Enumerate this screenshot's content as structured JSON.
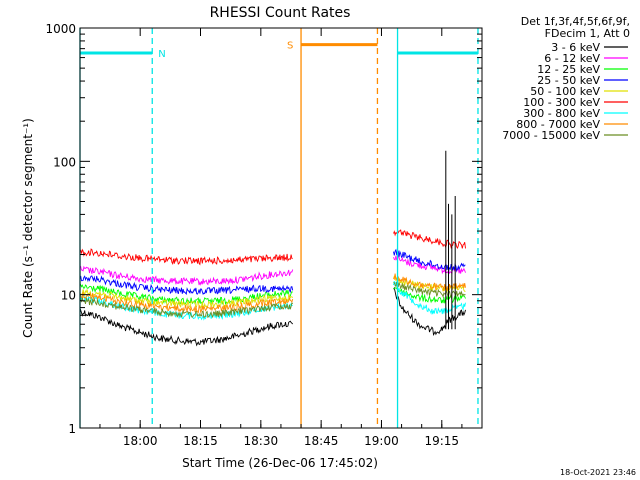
{
  "chart_data": {
    "type": "line",
    "title": "RHESSI Count Rates",
    "xlabel": "Start Time (26-Dec-06 17:45:02)",
    "ylabel": "Count Rate (s⁻¹ detector segment⁻¹)",
    "yscale": "log",
    "ylim": [
      1,
      1000
    ],
    "xlim": [
      "17:45:02",
      "19:25:00"
    ],
    "x_ticks": [
      "18:00",
      "18:15",
      "18:30",
      "18:45",
      "19:00",
      "19:15"
    ],
    "y_ticks": [
      "1",
      "10",
      "100",
      "1000"
    ],
    "legend_header": [
      "Det 1f,3f,4f,5f,6f,9f,",
      "FDecim 1, Att 0"
    ],
    "legend_position": "right",
    "grid": false,
    "series": [
      {
        "name": "3 - 6 keV",
        "color": "#000000",
        "points": [
          [
            "17:45",
            "7.5"
          ],
          [
            "17:50",
            "6.8"
          ],
          [
            "17:55",
            "5.8"
          ],
          [
            "18:00",
            "5.2"
          ],
          [
            "18:05",
            "4.7"
          ],
          [
            "18:10",
            "4.5"
          ],
          [
            "18:15",
            "4.4"
          ],
          [
            "18:20",
            "4.6"
          ],
          [
            "18:25",
            "5.0"
          ],
          [
            "18:30",
            "5.6"
          ],
          [
            "18:35",
            "6.0"
          ],
          [
            "18:38",
            "6.0"
          ],
          [
            "19:03",
            "11.0"
          ],
          [
            "19:05",
            "8.0"
          ],
          [
            "19:08",
            "6.5"
          ],
          [
            "19:10",
            "5.8"
          ],
          [
            "19:13",
            "5.3"
          ],
          [
            "19:15",
            "5.5"
          ],
          [
            "19:17",
            "6.5"
          ],
          [
            "19:19",
            "7.0"
          ],
          [
            "19:21",
            "7.5"
          ]
        ]
      },
      {
        "name": "6 - 12 keV",
        "color": "#ff00ff",
        "points": [
          [
            "17:45",
            "15.5"
          ],
          [
            "17:50",
            "14.8"
          ],
          [
            "17:55",
            "13.8"
          ],
          [
            "18:00",
            "13.2"
          ],
          [
            "18:05",
            "12.8"
          ],
          [
            "18:10",
            "12.6"
          ],
          [
            "18:15",
            "12.5"
          ],
          [
            "18:20",
            "12.6"
          ],
          [
            "18:25",
            "13.0"
          ],
          [
            "18:30",
            "13.8"
          ],
          [
            "18:35",
            "14.5"
          ],
          [
            "18:38",
            "14.8"
          ],
          [
            "19:03",
            "19.5"
          ],
          [
            "19:05",
            "18.0"
          ],
          [
            "19:08",
            "17.0"
          ],
          [
            "19:10",
            "16.5"
          ],
          [
            "19:13",
            "16.0"
          ],
          [
            "19:15",
            "15.5"
          ],
          [
            "19:17",
            "15.2"
          ],
          [
            "19:19",
            "15.0"
          ],
          [
            "19:21",
            "15.0"
          ]
        ]
      },
      {
        "name": "12 - 25 keV",
        "color": "#00ff00",
        "points": [
          [
            "17:45",
            "11.5"
          ],
          [
            "17:50",
            "11.0"
          ],
          [
            "17:55",
            "10.2"
          ],
          [
            "18:00",
            "9.6"
          ],
          [
            "18:05",
            "9.2"
          ],
          [
            "18:10",
            "9.0"
          ],
          [
            "18:15",
            "8.9"
          ],
          [
            "18:20",
            "9.0"
          ],
          [
            "18:25",
            "9.3"
          ],
          [
            "18:30",
            "9.8"
          ],
          [
            "18:35",
            "10.2"
          ],
          [
            "18:38",
            "10.2"
          ],
          [
            "19:03",
            "11.5"
          ],
          [
            "19:05",
            "10.5"
          ],
          [
            "19:08",
            "9.8"
          ],
          [
            "19:10",
            "9.4"
          ],
          [
            "19:13",
            "9.2"
          ],
          [
            "19:15",
            "9.0"
          ],
          [
            "19:17",
            "9.2"
          ],
          [
            "19:19",
            "9.4"
          ],
          [
            "19:21",
            "9.5"
          ]
        ]
      },
      {
        "name": "25 - 50 keV",
        "color": "#0000ff",
        "points": [
          [
            "17:45",
            "13.5"
          ],
          [
            "17:50",
            "13.0"
          ],
          [
            "17:55",
            "12.0"
          ],
          [
            "18:00",
            "11.3"
          ],
          [
            "18:05",
            "10.9"
          ],
          [
            "18:10",
            "10.7"
          ],
          [
            "18:15",
            "10.6"
          ],
          [
            "18:20",
            "10.7"
          ],
          [
            "18:25",
            "10.9"
          ],
          [
            "18:30",
            "11.2"
          ],
          [
            "18:35",
            "11.0"
          ],
          [
            "18:38",
            "11.0"
          ],
          [
            "19:03",
            "21.0"
          ],
          [
            "19:05",
            "20.0"
          ],
          [
            "19:08",
            "18.5"
          ],
          [
            "19:10",
            "17.5"
          ],
          [
            "19:13",
            "16.8"
          ],
          [
            "19:15",
            "16.3"
          ],
          [
            "19:17",
            "16.0"
          ],
          [
            "19:19",
            "16.0"
          ],
          [
            "19:21",
            "16.2"
          ]
        ]
      },
      {
        "name": "50 - 100 keV",
        "color": "#e0e000",
        "points": [
          [
            "17:45",
            "10.5"
          ],
          [
            "17:50",
            "10.2"
          ],
          [
            "17:55",
            "9.5"
          ],
          [
            "18:00",
            "9.0"
          ],
          [
            "18:05",
            "8.7"
          ],
          [
            "18:10",
            "8.5"
          ],
          [
            "18:15",
            "8.4"
          ],
          [
            "18:20",
            "8.5"
          ],
          [
            "18:25",
            "8.8"
          ],
          [
            "18:30",
            "9.2"
          ],
          [
            "18:35",
            "9.5"
          ],
          [
            "18:38",
            "9.5"
          ],
          [
            "19:03",
            "13.5"
          ],
          [
            "19:05",
            "12.5"
          ],
          [
            "19:08",
            "12.0"
          ],
          [
            "19:10",
            "11.6"
          ],
          [
            "19:13",
            "11.3"
          ],
          [
            "19:15",
            "11.1"
          ],
          [
            "19:17",
            "11.0"
          ],
          [
            "19:19",
            "11.0"
          ],
          [
            "19:21",
            "11.2"
          ]
        ]
      },
      {
        "name": "100 - 300 keV",
        "color": "#ff0000",
        "points": [
          [
            "17:45",
            "21.0"
          ],
          [
            "17:50",
            "20.5"
          ],
          [
            "17:55",
            "19.5"
          ],
          [
            "18:00",
            "18.8"
          ],
          [
            "18:05",
            "18.3"
          ],
          [
            "18:10",
            "18.0"
          ],
          [
            "18:15",
            "17.9"
          ],
          [
            "18:20",
            "18.0"
          ],
          [
            "18:25",
            "18.2"
          ],
          [
            "18:30",
            "18.6"
          ],
          [
            "18:35",
            "19.0"
          ],
          [
            "18:38",
            "19.2"
          ],
          [
            "19:03",
            "30.0"
          ],
          [
            "19:05",
            "29.0"
          ],
          [
            "19:08",
            "27.5"
          ],
          [
            "19:10",
            "26.5"
          ],
          [
            "19:13",
            "25.5"
          ],
          [
            "19:15",
            "24.5"
          ],
          [
            "19:17",
            "24.0"
          ],
          [
            "19:19",
            "23.5"
          ],
          [
            "19:21",
            "23.5"
          ]
        ]
      },
      {
        "name": "300 - 800 keV",
        "color": "#00ffff",
        "points": [
          [
            "17:45",
            "9.5"
          ],
          [
            "17:50",
            "9.0"
          ],
          [
            "17:55",
            "8.2"
          ],
          [
            "18:00",
            "7.6"
          ],
          [
            "18:05",
            "7.2"
          ],
          [
            "18:10",
            "7.0"
          ],
          [
            "18:15",
            "6.9"
          ],
          [
            "18:20",
            "7.0"
          ],
          [
            "18:25",
            "7.3"
          ],
          [
            "18:30",
            "7.8"
          ],
          [
            "18:35",
            "8.2"
          ],
          [
            "18:38",
            "8.3"
          ],
          [
            "19:03",
            "12.5"
          ],
          [
            "19:05",
            "10.5"
          ],
          [
            "19:08",
            "9.0"
          ],
          [
            "19:10",
            "8.2"
          ],
          [
            "19:13",
            "7.5"
          ],
          [
            "19:15",
            "7.5"
          ],
          [
            "19:17",
            "7.8"
          ],
          [
            "19:19",
            "8.0"
          ],
          [
            "19:21",
            "8.3"
          ]
        ]
      },
      {
        "name": "800 - 7000 keV",
        "color": "#ff8c00",
        "points": [
          [
            "17:45",
            "10.0"
          ],
          [
            "17:50",
            "9.6"
          ],
          [
            "17:55",
            "8.9"
          ],
          [
            "18:00",
            "8.4"
          ],
          [
            "18:05",
            "8.1"
          ],
          [
            "18:10",
            "7.9"
          ],
          [
            "18:15",
            "7.8"
          ],
          [
            "18:20",
            "7.9"
          ],
          [
            "18:25",
            "8.2"
          ],
          [
            "18:30",
            "8.6"
          ],
          [
            "18:35",
            "9.0"
          ],
          [
            "18:38",
            "9.0"
          ],
          [
            "19:03",
            "14.0"
          ],
          [
            "19:05",
            "13.0"
          ],
          [
            "19:08",
            "12.2"
          ],
          [
            "19:10",
            "11.8"
          ],
          [
            "19:13",
            "11.5"
          ],
          [
            "19:15",
            "11.3"
          ],
          [
            "19:17",
            "11.3"
          ],
          [
            "19:19",
            "11.5"
          ],
          [
            "19:21",
            "11.6"
          ]
        ]
      },
      {
        "name": "7000 - 15000 keV",
        "color": "#6b8e23",
        "points": [
          [
            "17:45",
            "9.0"
          ],
          [
            "17:50",
            "8.7"
          ],
          [
            "17:55",
            "8.1"
          ],
          [
            "18:00",
            "7.7"
          ],
          [
            "18:05",
            "7.4"
          ],
          [
            "18:10",
            "7.2"
          ],
          [
            "18:15",
            "7.1"
          ],
          [
            "18:20",
            "7.2"
          ],
          [
            "18:25",
            "7.5"
          ],
          [
            "18:30",
            "7.9"
          ],
          [
            "18:35",
            "8.2"
          ],
          [
            "18:38",
            "8.2"
          ],
          [
            "19:03",
            "12.5"
          ],
          [
            "19:05",
            "11.6"
          ],
          [
            "19:08",
            "11.0"
          ],
          [
            "19:10",
            "10.6"
          ],
          [
            "19:13",
            "10.3"
          ],
          [
            "19:15",
            "10.1"
          ],
          [
            "19:17",
            "10.1"
          ],
          [
            "19:19",
            "10.3"
          ],
          [
            "19:21",
            "10.4"
          ]
        ]
      }
    ],
    "spikes": [
      {
        "time": "19:16:00",
        "value": 120,
        "color": "#000000"
      },
      {
        "time": "19:16:40",
        "value": 48,
        "color": "#000000"
      },
      {
        "time": "19:18:20",
        "value": 55,
        "color": "#000000"
      },
      {
        "time": "19:17:30",
        "value": 40,
        "color": "#000000"
      }
    ],
    "attenuator_flags": [
      {
        "label": "N",
        "start": "17:45:02",
        "end": "18:03:00",
        "level": 650,
        "color": "#00e5e5"
      },
      {
        "label": "",
        "start": "19:04:00",
        "end": "19:24:00",
        "level": 650,
        "color": "#00e5e5"
      },
      {
        "label": "S",
        "start": "18:40:00",
        "end": "18:59:00",
        "level": 750,
        "color": "#ff8c00"
      }
    ],
    "vertical_markers": [
      {
        "time": "17:45:02",
        "style": "solid",
        "color": "#00e5e5"
      },
      {
        "time": "18:03:00",
        "style": "dashed",
        "color": "#00e5e5"
      },
      {
        "time": "18:40:00",
        "style": "solid",
        "color": "#ff8c00"
      },
      {
        "time": "18:59:00",
        "style": "dashed",
        "color": "#ff8c00"
      },
      {
        "time": "19:04:00",
        "style": "solid",
        "color": "#00e5e5"
      },
      {
        "time": "19:24:00",
        "style": "dashed",
        "color": "#00e5e5"
      }
    ],
    "timestamp": "18-Oct-2021 23:46"
  }
}
